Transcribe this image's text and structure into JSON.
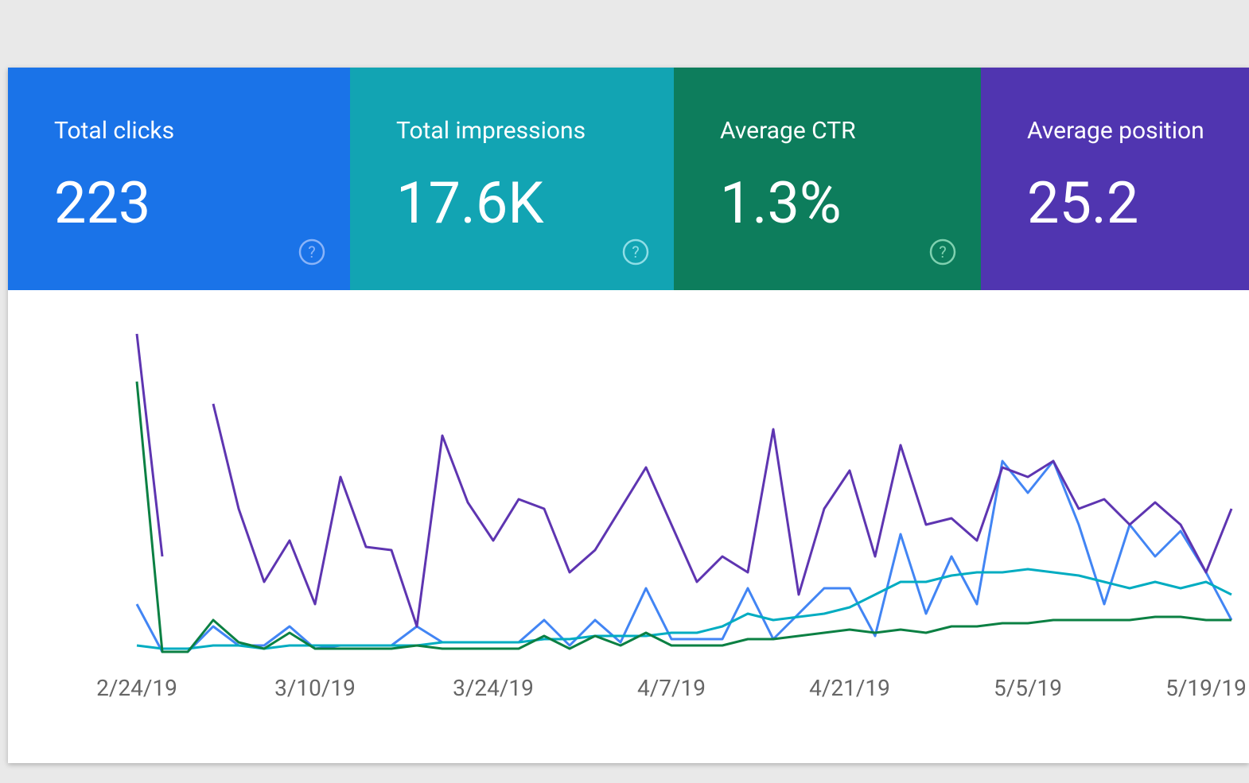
{
  "cards": [
    {
      "label": "Total clicks",
      "value": "223"
    },
    {
      "label": "Total impressions",
      "value": "17.6K"
    },
    {
      "label": "Average CTR",
      "value": "1.3%"
    },
    {
      "label": "Average position",
      "value": "25.2"
    }
  ],
  "chart_data": {
    "type": "line",
    "categories": [
      "2/24/19",
      null,
      null,
      null,
      null,
      null,
      null,
      "3/10/19",
      null,
      null,
      null,
      null,
      null,
      null,
      "3/24/19",
      null,
      null,
      null,
      null,
      null,
      null,
      "4/7/19",
      null,
      null,
      null,
      null,
      null,
      null,
      "4/21/19",
      null,
      null,
      null,
      null,
      null,
      null,
      "5/5/19",
      null,
      null,
      null,
      null,
      null,
      null,
      "5/19/19",
      null
    ],
    "ylim": [
      0,
      100
    ],
    "series": [
      {
        "name": "Total clicks",
        "color": "#4285f4",
        "values": [
          15,
          0,
          0,
          8,
          2,
          2,
          8,
          1,
          2,
          2,
          2,
          8,
          3,
          3,
          3,
          3,
          10,
          2,
          10,
          3,
          20,
          4,
          4,
          4,
          20,
          4,
          12,
          20,
          20,
          5,
          37,
          12,
          30,
          15,
          60,
          50,
          60,
          40,
          15,
          40,
          30,
          38,
          25,
          10
        ]
      },
      {
        "name": "Total impressions",
        "color": "#5e35b1",
        "values": [
          100,
          30,
          null,
          78,
          45,
          22,
          35,
          15,
          55,
          33,
          32,
          8,
          68,
          47,
          35,
          48,
          45,
          25,
          32,
          45,
          58,
          40,
          22,
          30,
          25,
          70,
          18,
          45,
          57,
          30,
          65,
          40,
          42,
          35,
          58,
          55,
          60,
          45,
          48,
          40,
          47,
          40,
          25,
          45
        ]
      },
      {
        "name": "Average CTR",
        "color": "#00acc1",
        "values": [
          2,
          1,
          1,
          2,
          2,
          1,
          2,
          2,
          2,
          2,
          2,
          2,
          3,
          3,
          3,
          3,
          4,
          4,
          5,
          5,
          5,
          6,
          6,
          8,
          12,
          10,
          11,
          12,
          14,
          18,
          22,
          22,
          24,
          25,
          25,
          26,
          25,
          24,
          22,
          20,
          22,
          20,
          22,
          18
        ]
      },
      {
        "name": "Average position",
        "color": "#0b8043",
        "values": [
          85,
          0,
          0,
          10,
          3,
          1,
          6,
          1,
          1,
          1,
          1,
          2,
          1,
          1,
          1,
          1,
          5,
          1,
          5,
          2,
          6,
          2,
          2,
          2,
          4,
          4,
          5,
          6,
          7,
          6,
          7,
          6,
          8,
          8,
          9,
          9,
          10,
          10,
          10,
          10,
          11,
          11,
          10,
          10
        ]
      }
    ]
  }
}
